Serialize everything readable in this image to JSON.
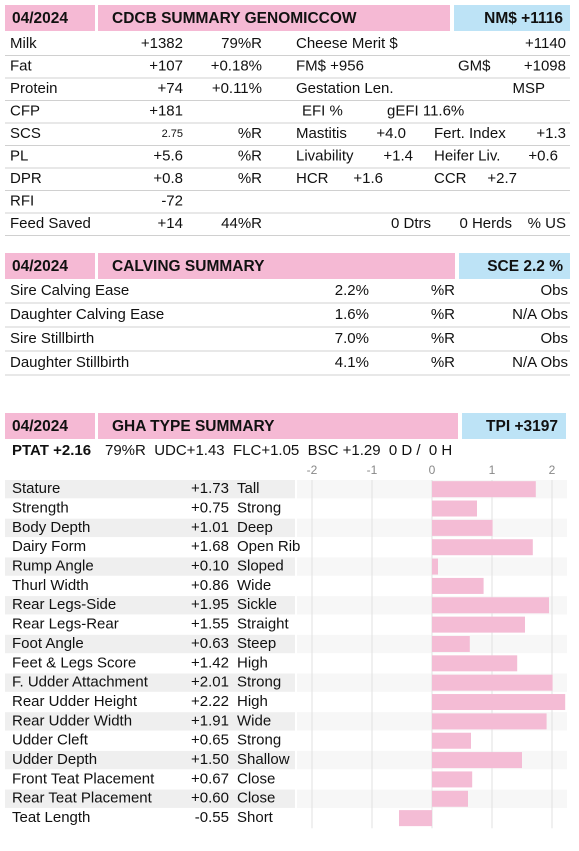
{
  "genomic_summary": {
    "date": "04/2024",
    "title": "CDCB SUMMARY GENOMICCOW",
    "index": "NM$ +1116",
    "rows": [
      [
        "Milk",
        "+1382",
        "79%R",
        "Cheese Merit $",
        "+1140"
      ],
      [
        "Fat",
        "+107",
        "+0.18%",
        "FM$ +956",
        "GM$",
        "+1098"
      ],
      [
        "Protein",
        "+74",
        "+0.11%",
        "Gestation Len.",
        "MSP"
      ],
      [
        "CFP",
        "+181",
        "EFI  %",
        "gEFI 11.6%"
      ],
      [
        "SCS",
        "2.75",
        "%R",
        "Mastitis",
        "+4.0",
        "Fert. Index",
        "+1.3"
      ],
      [
        "PL",
        "+5.6",
        "%R",
        "Livability",
        "+1.4",
        "Heifer Liv.",
        "+0.6"
      ],
      [
        "DPR",
        "+0.8",
        "%R",
        "HCR",
        "+1.6",
        "CCR",
        "+2.7"
      ],
      [
        "RFI",
        "-72"
      ],
      [
        "Feed Saved",
        "+14",
        "44%R",
        "0 Dtrs",
        "0 Herds",
        "% US"
      ]
    ]
  },
  "calving_summary": {
    "date": "04/2024",
    "title": "CALVING SUMMARY",
    "index": "SCE 2.2 %",
    "rows": [
      [
        "Sire Calving Ease",
        "2.2%",
        "%R",
        "Obs"
      ],
      [
        "Daughter Calving Ease",
        "1.6%",
        "%R",
        "N/A Obs"
      ],
      [
        "Sire Stillbirth",
        "7.0%",
        "%R",
        "Obs"
      ],
      [
        "Daughter Stillbirth",
        "4.1%",
        "%R",
        "N/A Obs"
      ]
    ]
  },
  "type_summary": {
    "date": "04/2024",
    "title": "GHA TYPE SUMMARY",
    "index": "TPI +3197",
    "ptat": "PTAT +2.16",
    "ptat_details": "79%R  UDC+1.43  FLC+1.05  BSC +1.29  0 D /  0 H",
    "xlim": [
      -2.25,
      2.25
    ],
    "xticks": [
      -2,
      -1,
      0,
      1,
      2
    ],
    "traits": [
      {
        "name": "Stature",
        "value": 1.73,
        "label": "+1.73",
        "desc": "Tall"
      },
      {
        "name": "Strength",
        "value": 0.75,
        "label": "+0.75",
        "desc": "Strong"
      },
      {
        "name": "Body Depth",
        "value": 1.01,
        "label": "+1.01",
        "desc": "Deep"
      },
      {
        "name": "Dairy Form",
        "value": 1.68,
        "label": "+1.68",
        "desc": "Open Rib"
      },
      {
        "name": "Rump Angle",
        "value": 0.1,
        "label": "+0.10",
        "desc": "Sloped"
      },
      {
        "name": "Thurl Width",
        "value": 0.86,
        "label": "+0.86",
        "desc": "Wide"
      },
      {
        "name": "Rear Legs-Side",
        "value": 1.95,
        "label": "+1.95",
        "desc": "Sickle"
      },
      {
        "name": "Rear Legs-Rear",
        "value": 1.55,
        "label": "+1.55",
        "desc": "Straight"
      },
      {
        "name": "Foot Angle",
        "value": 0.63,
        "label": "+0.63",
        "desc": "Steep"
      },
      {
        "name": "Feet & Legs Score",
        "value": 1.42,
        "label": "+1.42",
        "desc": "High"
      },
      {
        "name": "F. Udder Attachment",
        "value": 2.01,
        "label": "+2.01",
        "desc": "Strong"
      },
      {
        "name": "Rear Udder Height",
        "value": 2.22,
        "label": "+2.22",
        "desc": "High"
      },
      {
        "name": "Rear Udder Width",
        "value": 1.91,
        "label": "+1.91",
        "desc": "Wide"
      },
      {
        "name": "Udder Cleft",
        "value": 0.65,
        "label": "+0.65",
        "desc": "Strong"
      },
      {
        "name": "Udder Depth",
        "value": 1.5,
        "label": "+1.50",
        "desc": "Shallow"
      },
      {
        "name": "Front Teat Placement",
        "value": 0.67,
        "label": "+0.67",
        "desc": "Close"
      },
      {
        "name": "Rear Teat Placement",
        "value": 0.6,
        "label": "+0.60",
        "desc": "Close"
      },
      {
        "name": "Teat Length",
        "value": -0.55,
        "label": "-0.55",
        "desc": "Short"
      }
    ]
  }
}
